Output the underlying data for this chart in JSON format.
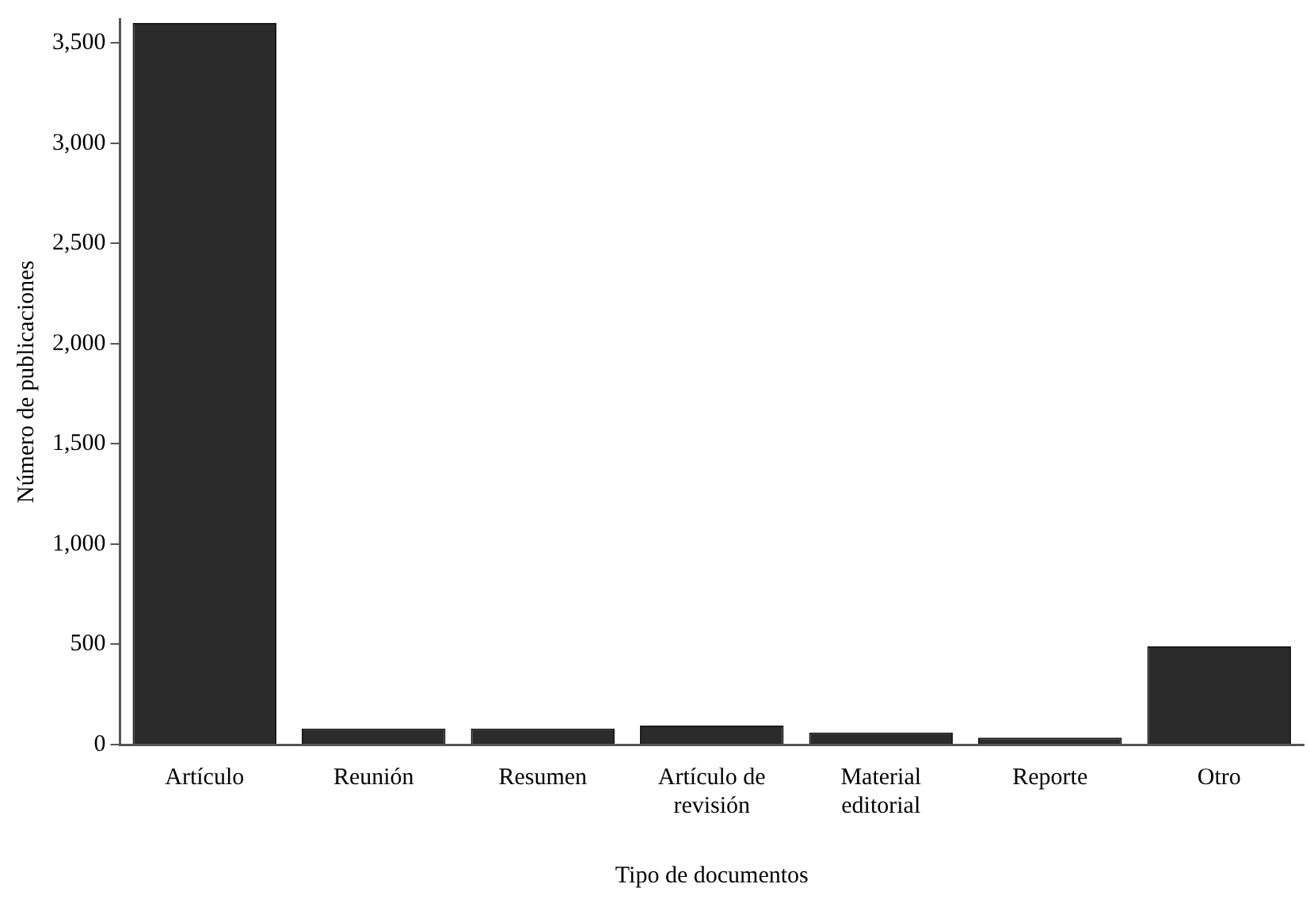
{
  "chart_data": {
    "type": "bar",
    "xlabel": "Tipo de documentos",
    "ylabel": "Número de publicaciones",
    "categories": [
      "Artículo",
      "Reunión",
      "Resumen",
      "Artículo de revisión",
      "Material editorial",
      "Reporte",
      "Otro"
    ],
    "values": [
      3600,
      80,
      80,
      95,
      60,
      35,
      490
    ],
    "color": "#2b2b2b",
    "ylim": [
      0,
      3620
    ],
    "yticks": [
      {
        "value": 0,
        "label": "0"
      },
      {
        "value": 500,
        "label": "500"
      },
      {
        "value": 1000,
        "label": "1,000"
      },
      {
        "value": 1500,
        "label": "1,500"
      },
      {
        "value": 2000,
        "label": "2,000"
      },
      {
        "value": 2500,
        "label": "2,500"
      },
      {
        "value": 3000,
        "label": "3,000"
      },
      {
        "value": 3500,
        "label": "3,500"
      }
    ],
    "grid": false,
    "legend": false
  }
}
